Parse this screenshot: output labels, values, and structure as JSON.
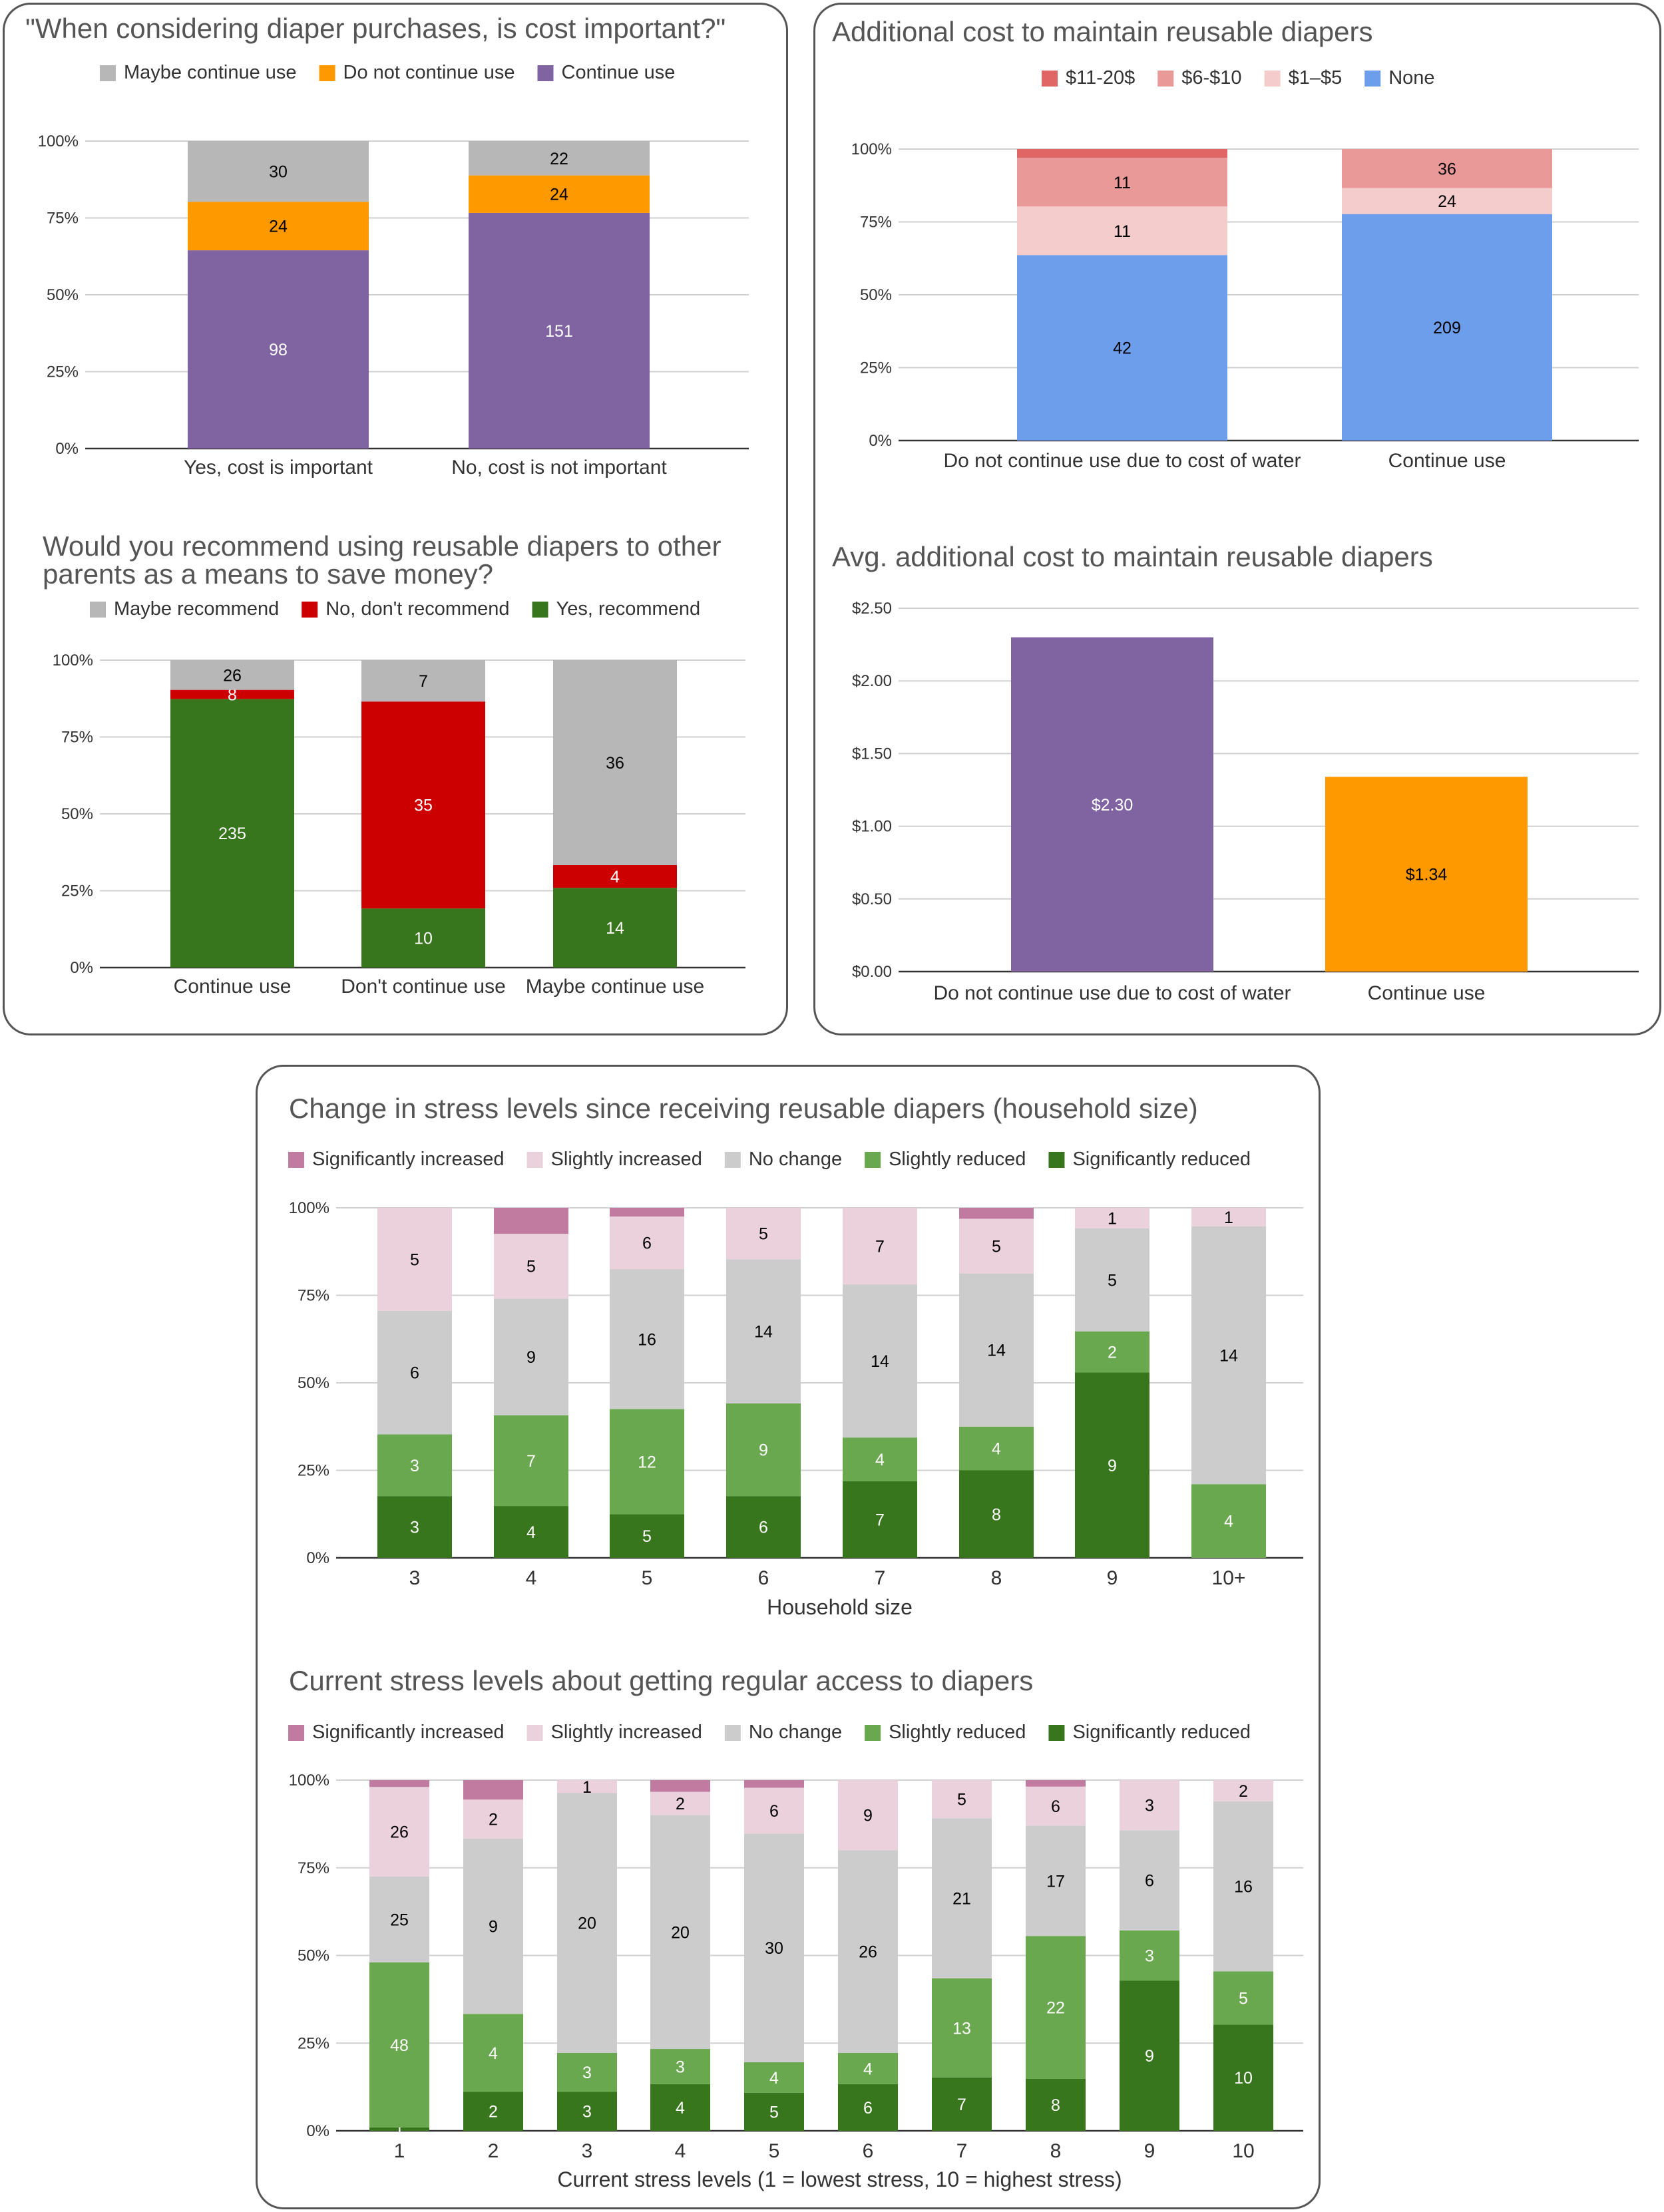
{
  "chart_data": [
    {
      "id": "cost_important",
      "type": "bar",
      "stacked": "percent",
      "title": "\"When considering diaper purchases, is cost important?\"",
      "categories": [
        "Yes, cost is important",
        "No, cost is not important"
      ],
      "series": [
        {
          "name": "Continue use",
          "color": "#8064a2",
          "values": [
            98,
            151
          ]
        },
        {
          "name": "Do not continue use",
          "color": "#ff9900",
          "values": [
            24,
            24
          ]
        },
        {
          "name": "Maybe continue use",
          "color": "#b7b7b7",
          "values": [
            30,
            22
          ]
        }
      ],
      "legend": [
        "Maybe continue use",
        "Do not continue use",
        "Continue use"
      ],
      "yticks": [
        "0%",
        "25%",
        "50%",
        "75%",
        "100%"
      ],
      "xlabel": "",
      "ylabel": "",
      "ylim": [
        0,
        100
      ]
    },
    {
      "id": "additional_cost",
      "type": "bar",
      "stacked": "percent",
      "title": "Additional cost to maintain reusable diapers",
      "categories": [
        "Do not continue use due to cost of water",
        "Continue use"
      ],
      "series": [
        {
          "name": "None",
          "color": "#6d9eeb",
          "values": [
            42,
            209
          ]
        },
        {
          "name": "$1–$5",
          "color": "#f4cccc",
          "values": [
            11,
            24
          ]
        },
        {
          "name": "$6-$10",
          "color": "#ea9999",
          "values": [
            11,
            36
          ]
        },
        {
          "name": "$11-20$",
          "color": "#e06666",
          "values": [
            2,
            0
          ]
        }
      ],
      "hide_labels": {
        "$11-20$": true
      },
      "legend": [
        "$11-20$",
        "$6-$10",
        "$1–$5",
        "None"
      ],
      "yticks": [
        "0%",
        "25%",
        "50%",
        "75%",
        "100%"
      ],
      "xlabel": "",
      "ylabel": "",
      "ylim": [
        0,
        100
      ]
    },
    {
      "id": "recommend",
      "type": "bar",
      "stacked": "percent",
      "title": [
        "Would you recommend using reusable diapers to other",
        "parents as a means to save money?"
      ],
      "categories": [
        "Continue use",
        "Don't continue use",
        "Maybe continue use"
      ],
      "series": [
        {
          "name": "Yes, recommend",
          "color": "#38761d",
          "values": [
            235,
            10,
            14
          ]
        },
        {
          "name": "No, don't recommend",
          "color": "#cc0000",
          "values": [
            8,
            35,
            4
          ]
        },
        {
          "name": "Maybe recommend",
          "color": "#b7b7b7",
          "values": [
            26,
            7,
            36
          ]
        }
      ],
      "legend": [
        "Maybe recommend",
        "No, don't recommend",
        "Yes, recommend"
      ],
      "yticks": [
        "0%",
        "25%",
        "50%",
        "75%",
        "100%"
      ],
      "xlabel": "",
      "ylabel": "",
      "ylim": [
        0,
        100
      ]
    },
    {
      "id": "avg_cost",
      "type": "bar",
      "title": "Avg. additional cost to maintain reusable diapers",
      "categories": [
        "Do not continue use due to cost of water",
        "Continue use"
      ],
      "values": [
        2.3,
        1.34
      ],
      "value_labels": [
        "$2.30",
        "$1.34"
      ],
      "colors": [
        "#8064a2",
        "#ff9900"
      ],
      "yticks": [
        "$0.00",
        "$0.50",
        "$1.00",
        "$1.50",
        "$2.00",
        "$2.50"
      ],
      "xlabel": "",
      "ylabel": "",
      "ylim": [
        0,
        2.5
      ]
    },
    {
      "id": "stress_household",
      "type": "bar",
      "stacked": "percent",
      "title": "Change in stress levels since receiving reusable diapers (household size)",
      "categories": [
        "3",
        "4",
        "5",
        "6",
        "7",
        "8",
        "9",
        "10+"
      ],
      "series": [
        {
          "name": "Significantly reduced",
          "color": "#38761d",
          "values": [
            3,
            4,
            5,
            6,
            7,
            8,
            9,
            0
          ]
        },
        {
          "name": "Slightly reduced",
          "color": "#6aa84f",
          "values": [
            3,
            7,
            12,
            9,
            4,
            4,
            2,
            4
          ]
        },
        {
          "name": "No change",
          "color": "#cccccc",
          "values": [
            6,
            9,
            16,
            14,
            14,
            14,
            5,
            14
          ]
        },
        {
          "name": "Slightly increased",
          "color": "#ead1dc",
          "values": [
            5,
            5,
            6,
            5,
            7,
            5,
            1,
            1
          ]
        },
        {
          "name": "Significantly increased",
          "color": "#c27ba0",
          "values": [
            0,
            2,
            1,
            0,
            0,
            1,
            0,
            0
          ]
        }
      ],
      "hide_labels": {
        "Significantly increased": true
      },
      "legend": [
        "Significantly increased",
        "Slightly increased",
        "No change",
        "Slightly reduced",
        "Significantly reduced"
      ],
      "yticks": [
        "0%",
        "25%",
        "50%",
        "75%",
        "100%"
      ],
      "xlabel": "Household size",
      "ylabel": "",
      "ylim": [
        0,
        100
      ]
    },
    {
      "id": "stress_current",
      "type": "bar",
      "stacked": "percent",
      "title": "Current stress levels about getting regular access to diapers",
      "categories": [
        "1",
        "2",
        "3",
        "4",
        "5",
        "6",
        "7",
        "8",
        "9",
        "10"
      ],
      "series": [
        {
          "name": "Significantly reduced",
          "color": "#38761d",
          "values": [
            1,
            2,
            3,
            4,
            5,
            6,
            7,
            8,
            9,
            10
          ]
        },
        {
          "name": "Slightly reduced",
          "color": "#6aa84f",
          "values": [
            48,
            4,
            3,
            3,
            4,
            4,
            13,
            22,
            3,
            5
          ]
        },
        {
          "name": "No change",
          "color": "#cccccc",
          "values": [
            25,
            9,
            20,
            20,
            30,
            26,
            21,
            17,
            6,
            16
          ]
        },
        {
          "name": "Slightly increased",
          "color": "#ead1dc",
          "values": [
            26,
            2,
            1,
            2,
            6,
            9,
            5,
            6,
            3,
            2
          ]
        },
        {
          "name": "Significantly increased",
          "color": "#c27ba0",
          "values": [
            2,
            1,
            0,
            1,
            1,
            0,
            0,
            1,
            0,
            0
          ]
        }
      ],
      "hide_labels": {
        "Significantly increased": true
      },
      "legend": [
        "Significantly increased",
        "Slightly increased",
        "No change",
        "Slightly reduced",
        "Significantly reduced"
      ],
      "yticks": [
        "0%",
        "25%",
        "50%",
        "75%",
        "100%"
      ],
      "xlabel": "Current stress levels (1 = lowest stress, 10 = highest stress)",
      "ylabel": "",
      "ylim": [
        0,
        100
      ]
    }
  ]
}
